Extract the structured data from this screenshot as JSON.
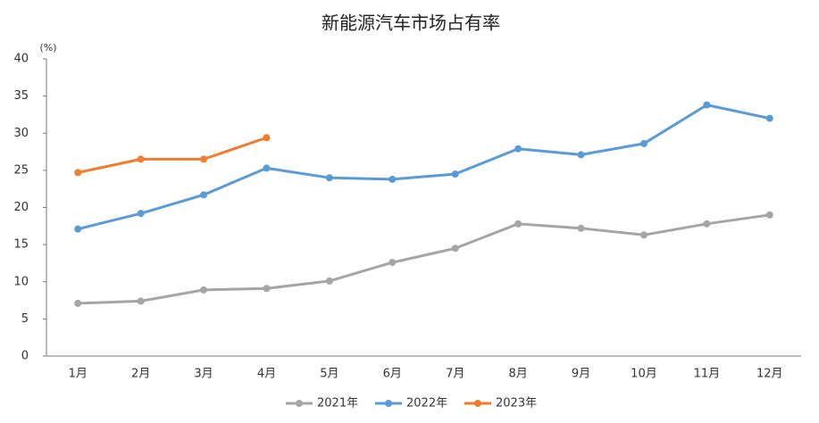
{
  "chart_data": {
    "type": "line",
    "title": "新能源汽车市场占有率",
    "y_unit": "(%)",
    "categories": [
      "1月",
      "2月",
      "3月",
      "4月",
      "5月",
      "6月",
      "7月",
      "8月",
      "9月",
      "10月",
      "11月",
      "12月"
    ],
    "series": [
      {
        "name": "2021年",
        "color": "#a5a5a5",
        "values": [
          7.1,
          7.4,
          8.9,
          9.1,
          10.1,
          12.6,
          14.5,
          17.8,
          17.2,
          16.3,
          17.8,
          19.0
        ]
      },
      {
        "name": "2022年",
        "color": "#5b9bd5",
        "values": [
          17.1,
          19.2,
          21.7,
          25.3,
          24.0,
          23.8,
          24.5,
          27.9,
          27.1,
          28.6,
          33.8,
          32.0
        ]
      },
      {
        "name": "2023年",
        "color": "#ed7d31",
        "values": [
          24.7,
          26.5,
          26.5,
          29.4,
          null,
          null,
          null,
          null,
          null,
          null,
          null,
          null
        ]
      }
    ],
    "ylim": [
      0,
      40
    ],
    "yticks": [
      0,
      5,
      10,
      15,
      20,
      25,
      30,
      35,
      40
    ],
    "grid": false,
    "legend": "bottom"
  }
}
